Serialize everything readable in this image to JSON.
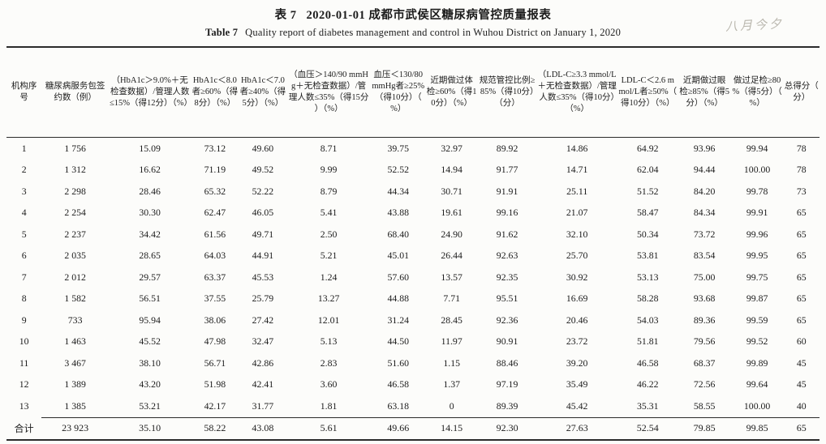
{
  "caption": {
    "cn_label": "表 7",
    "cn_title": "2020-01-01 成都市武侯区糖尿病管控质量报表",
    "en_label": "Table 7",
    "en_title": "Quality report of diabetes management and control in Wuhou District on January 1, 2020"
  },
  "watermark": {
    "text": "八月今夕"
  },
  "table": {
    "headers": [
      "机构序号",
      "糖尿病服务包签约数（例）",
      "（HbA1c＞9.0%＋无检查数据）/管理人数≤15%（得12分）（%）",
      "HbA1c＜8.0者≥60%（得8分）（%）",
      "HbA1c＜7.0者≥40%（得5分）（%）",
      "（血压＞140/90 mmHg＋无检查数据）/管理人数≤35%（得15分）（%）",
      "血压＜130/80 mmHg者≥25%（得10分）（%）",
      "近期做过体检≥60%（得10分）（%）",
      "规范管控比例≥85%（得10分）（分）",
      "（LDL-C≥3.3 mmol/L＋无检查数据）/管理人数≤35%（得10分）（%）",
      "LDL-C＜2.6 mmol/L者≥50%（得10分）（%）",
      "近期做过眼检≥85%（得5分）（%）",
      "做过足检≥80%（得5分）（%）",
      "总得分（分）"
    ],
    "rows": [
      [
        "1",
        "1 756",
        "15.09",
        "73.12",
        "49.60",
        "8.71",
        "39.75",
        "32.97",
        "89.92",
        "14.86",
        "64.92",
        "93.96",
        "99.94",
        "78"
      ],
      [
        "2",
        "1 312",
        "16.62",
        "71.19",
        "49.52",
        "9.99",
        "52.52",
        "14.94",
        "91.77",
        "14.71",
        "62.04",
        "94.44",
        "100.00",
        "78"
      ],
      [
        "3",
        "2 298",
        "28.46",
        "65.32",
        "52.22",
        "8.79",
        "44.34",
        "30.71",
        "91.91",
        "25.11",
        "51.52",
        "84.20",
        "99.78",
        "73"
      ],
      [
        "4",
        "2 254",
        "30.30",
        "62.47",
        "46.05",
        "5.41",
        "43.88",
        "19.61",
        "99.16",
        "21.07",
        "58.47",
        "84.34",
        "99.91",
        "65"
      ],
      [
        "5",
        "2 237",
        "34.42",
        "61.56",
        "49.71",
        "2.50",
        "68.40",
        "24.90",
        "91.62",
        "32.10",
        "50.34",
        "73.72",
        "99.96",
        "65"
      ],
      [
        "6",
        "2 035",
        "28.65",
        "64.03",
        "44.91",
        "5.21",
        "45.01",
        "26.44",
        "92.63",
        "25.70",
        "53.81",
        "83.54",
        "99.95",
        "65"
      ],
      [
        "7",
        "2 012",
        "29.57",
        "63.37",
        "45.53",
        "1.24",
        "57.60",
        "13.57",
        "92.35",
        "30.92",
        "53.13",
        "75.00",
        "99.75",
        "65"
      ],
      [
        "8",
        "1 582",
        "56.51",
        "37.55",
        "25.79",
        "13.27",
        "44.88",
        "7.71",
        "95.51",
        "16.69",
        "58.28",
        "93.68",
        "99.87",
        "65"
      ],
      [
        "9",
        "733",
        "95.94",
        "38.06",
        "27.42",
        "12.01",
        "31.24",
        "28.45",
        "92.36",
        "20.46",
        "54.03",
        "89.36",
        "99.59",
        "65"
      ],
      [
        "10",
        "1 463",
        "45.52",
        "47.98",
        "32.47",
        "5.13",
        "44.50",
        "11.97",
        "90.91",
        "23.72",
        "51.81",
        "79.56",
        "99.52",
        "60"
      ],
      [
        "11",
        "3 467",
        "38.10",
        "56.71",
        "42.86",
        "2.83",
        "51.60",
        "1.15",
        "88.46",
        "39.20",
        "46.58",
        "68.37",
        "99.89",
        "45"
      ],
      [
        "12",
        "1 389",
        "43.20",
        "51.98",
        "42.41",
        "3.60",
        "46.58",
        "1.37",
        "97.19",
        "35.49",
        "46.22",
        "72.56",
        "99.64",
        "45"
      ],
      [
        "13",
        "1 385",
        "53.21",
        "42.17",
        "31.77",
        "1.81",
        "63.18",
        "0",
        "89.39",
        "45.42",
        "35.31",
        "58.55",
        "100.00",
        "40"
      ]
    ],
    "total_label": "合计",
    "total": [
      "23 923",
      "35.10",
      "58.22",
      "43.08",
      "5.61",
      "49.66",
      "14.15",
      "92.30",
      "27.63",
      "52.54",
      "79.85",
      "99.85",
      "65"
    ]
  }
}
